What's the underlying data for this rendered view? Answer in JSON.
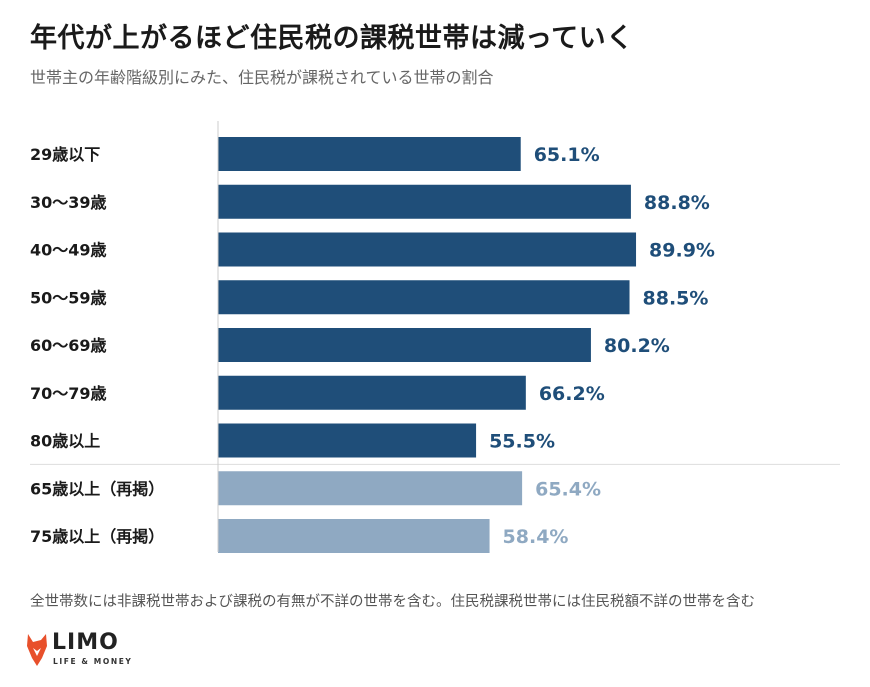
{
  "chart_data": {
    "type": "bar",
    "orientation": "horizontal",
    "title": "年代が上がるほど住民税の課税世帯は減っていく",
    "subtitle": "世帯主の年齢階級別にみた、住民税が課税されている世帯の割合",
    "categories": [
      "29歳以下",
      "30〜39歳",
      "40〜49歳",
      "50〜59歳",
      "60〜69歳",
      "70〜79歳",
      "80歳以上",
      "65歳以上（再掲）",
      "75歳以上（再掲）"
    ],
    "values": [
      65.1,
      88.8,
      89.9,
      88.5,
      80.2,
      66.2,
      55.5,
      65.4,
      58.4
    ],
    "value_labels": [
      "65.1%",
      "88.8%",
      "89.9%",
      "88.5%",
      "80.2%",
      "66.2%",
      "55.5%",
      "65.4%",
      "58.4%"
    ],
    "xlim": [
      0,
      100
    ],
    "grid": false,
    "colors": {
      "primary": "#1f4e79",
      "secondary": "#8fa9c2"
    },
    "footnote": "全世帯数には非課税世帯および課税の有無が不詳の世帯を含む。住民税課税世帯には住民税額不詳の世帯を含む"
  },
  "logo": {
    "wordmark": "LIMO",
    "tagline": "LIFE & MONEY",
    "icon": "fox-icon",
    "color": "#e8502b"
  }
}
